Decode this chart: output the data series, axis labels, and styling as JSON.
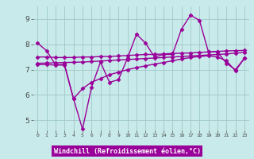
{
  "title": "",
  "xlabel": "Windchill (Refroidissement éolien,°C)",
  "xlim": [
    -0.5,
    23.5
  ],
  "ylim": [
    4.6,
    9.5
  ],
  "yticks": [
    5,
    6,
    7,
    8,
    9
  ],
  "xticks": [
    0,
    1,
    2,
    3,
    4,
    5,
    6,
    7,
    8,
    9,
    10,
    11,
    12,
    13,
    14,
    15,
    16,
    17,
    18,
    19,
    20,
    21,
    22,
    23
  ],
  "background_color": "#c8eaea",
  "line_color": "#990099",
  "grid_color": "#a0c8c8",
  "xlabel_bg": "#990099",
  "xlabel_fg": "#ffffff",
  "series": [
    {
      "x": [
        0,
        1,
        2,
        3,
        4,
        5,
        6,
        7,
        8,
        9,
        10,
        11,
        12,
        13,
        14,
        15,
        16,
        17,
        18,
        19,
        20,
        21,
        22,
        23
      ],
      "y": [
        8.05,
        7.75,
        7.2,
        7.2,
        5.85,
        4.65,
        6.3,
        7.3,
        6.5,
        6.6,
        7.45,
        8.4,
        8.05,
        7.5,
        7.6,
        7.6,
        8.6,
        9.15,
        8.95,
        7.7,
        7.7,
        7.25,
        7.0,
        7.45
      ],
      "marker": "D",
      "markersize": 2.5,
      "linewidth": 1.0
    },
    {
      "x": [
        0,
        1,
        2,
        3,
        4,
        5,
        6,
        7,
        8,
        9,
        10,
        11,
        12,
        13,
        14,
        15,
        16,
        17,
        18,
        19,
        20,
        21,
        22,
        23
      ],
      "y": [
        7.5,
        7.5,
        7.48,
        7.48,
        7.48,
        7.5,
        7.5,
        7.52,
        7.52,
        7.54,
        7.56,
        7.58,
        7.6,
        7.6,
        7.62,
        7.64,
        7.65,
        7.66,
        7.68,
        7.7,
        7.72,
        7.74,
        7.75,
        7.76
      ],
      "marker": "D",
      "markersize": 2.5,
      "linewidth": 1.0
    },
    {
      "x": [
        0,
        1,
        2,
        3,
        4,
        5,
        6,
        7,
        8,
        9,
        10,
        11,
        12,
        13,
        14,
        15,
        16,
        17,
        18,
        19,
        20,
        21,
        22,
        23
      ],
      "y": [
        7.25,
        7.26,
        7.27,
        7.28,
        7.29,
        7.3,
        7.32,
        7.34,
        7.36,
        7.38,
        7.4,
        7.42,
        7.44,
        7.46,
        7.48,
        7.5,
        7.52,
        7.54,
        7.56,
        7.58,
        7.6,
        7.62,
        7.65,
        7.68
      ],
      "marker": "D",
      "markersize": 2.5,
      "linewidth": 1.0
    },
    {
      "x": [
        0,
        1,
        2,
        3,
        4,
        5,
        6,
        7,
        8,
        9,
        10,
        11,
        12,
        13,
        14,
        15,
        16,
        17,
        18,
        19,
        20,
        21,
        22,
        23
      ],
      "y": [
        7.2,
        7.2,
        7.18,
        7.18,
        5.85,
        6.25,
        6.5,
        6.65,
        6.8,
        6.9,
        7.0,
        7.08,
        7.15,
        7.22,
        7.28,
        7.35,
        7.42,
        7.48,
        7.52,
        7.55,
        7.5,
        7.35,
        6.95,
        7.45
      ],
      "marker": "D",
      "markersize": 2.5,
      "linewidth": 1.0
    }
  ]
}
